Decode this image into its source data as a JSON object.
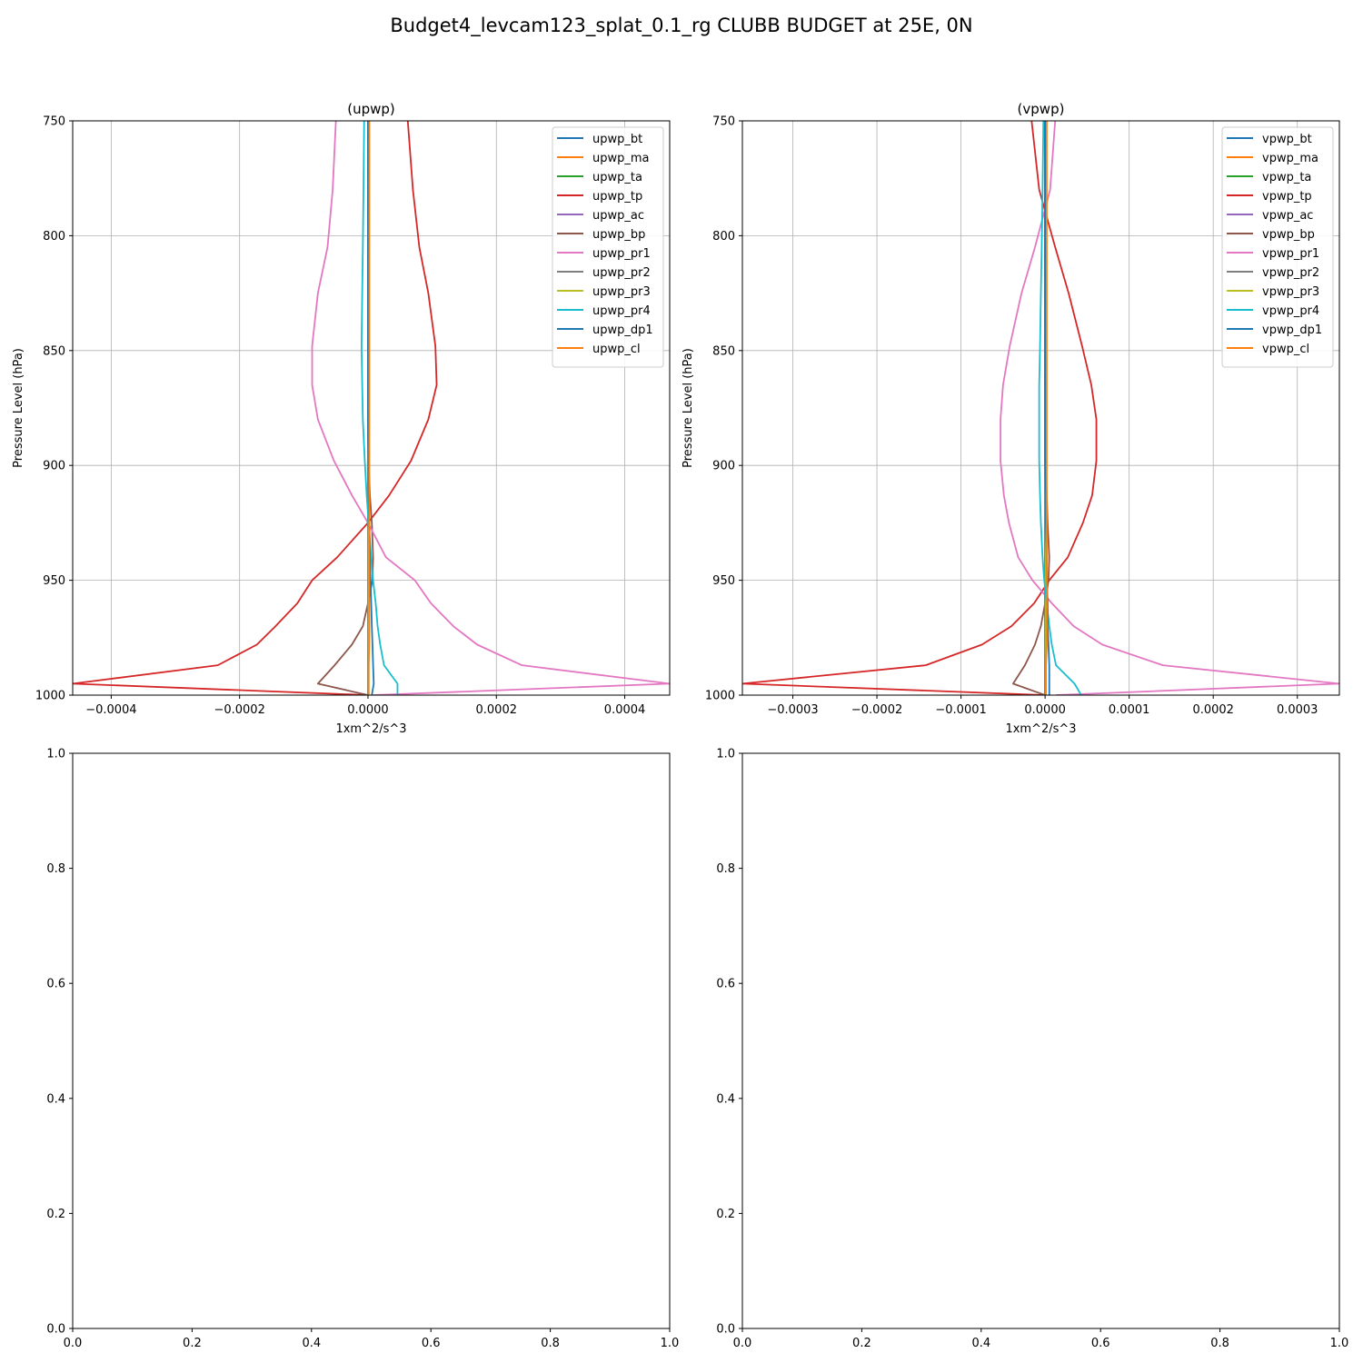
{
  "figure_title": "Budget4_levcam123_splat_0.1_rg CLUBB BUDGET at 25E, 0N",
  "colors": {
    "bt": "#1f77b4",
    "ma": "#ff7f0e",
    "ta": "#2ca02c",
    "tp": "#d62728",
    "ac": "#9467bd",
    "bp": "#8c564b",
    "pr1": "#e377c2",
    "pr2": "#7f7f7f",
    "pr3": "#bcbd22",
    "pr4": "#17becf",
    "dp1": "#1f77b4",
    "cl": "#ff7f0e"
  },
  "chart_data": [
    {
      "type": "line",
      "title": "(upwp)",
      "xlabel": "1xm^2/s^3",
      "ylabel": "Pressure Level (hPa)",
      "xlim": [
        -0.00046,
        0.00047
      ],
      "ylim": [
        1000,
        750
      ],
      "xticks": [
        -0.0004,
        -0.0002,
        0.0,
        0.0002,
        0.0004
      ],
      "xtick_labels": [
        "−0.0004",
        "−0.0002",
        "0.0000",
        "0.0002",
        "0.0004"
      ],
      "yticks": [
        750,
        800,
        850,
        900,
        950,
        1000
      ],
      "ytick_labels": [
        "750",
        "800",
        "850",
        "900",
        "950",
        "1000"
      ],
      "grid": true,
      "legend_position": "top-right",
      "levels": [
        750,
        780,
        805,
        825,
        848,
        865,
        880,
        898,
        913,
        925,
        940,
        950,
        960,
        970,
        978,
        987,
        995,
        1000
      ],
      "series": [
        {
          "name": "upwp_bt",
          "key": "bt",
          "values": [
            1e-06,
            1e-06,
            1e-06,
            1e-06,
            1e-06,
            1e-06,
            1e-06,
            1e-06,
            1e-06,
            1e-06,
            1e-06,
            1e-06,
            1e-06,
            1e-06,
            1e-06,
            1e-06,
            1e-06,
            1e-06
          ]
        },
        {
          "name": "upwp_ma",
          "key": "ma",
          "values": [
            0.0,
            0.0,
            0.0,
            0.0,
            0.0,
            0.0,
            0.0,
            0.0,
            0.0,
            0.0,
            0.0,
            0.0,
            0.0,
            0.0,
            0.0,
            0.0,
            0.0,
            0.0
          ]
        },
        {
          "name": "upwp_ta",
          "key": "ta",
          "values": [
            0.0,
            0.0,
            0.0,
            0.0,
            0.0,
            0.0,
            0.0,
            0.0,
            0.0,
            0.0,
            0.0,
            0.0,
            0.0,
            0.0,
            0.0,
            0.0,
            0.0,
            0.0
          ]
        },
        {
          "name": "upwp_tp",
          "key": "tp",
          "values": [
            6.2e-05,
            7e-05,
            8e-05,
            9.4e-05,
            0.000105,
            0.000107,
            9.4e-05,
            6.7e-05,
            3.3e-05,
            0.0,
            -4.8e-05,
            -8.7e-05,
            -0.00011,
            -0.000144,
            -0.000173,
            -0.000234,
            -0.00046,
            0.0
          ]
        },
        {
          "name": "upwp_ac",
          "key": "ac",
          "values": [
            0.0,
            0.0,
            0.0,
            0.0,
            0.0,
            0.0,
            0.0,
            0.0,
            0.0,
            0.0,
            0.0,
            0.0,
            0.0,
            0.0,
            0.0,
            0.0,
            0.0,
            0.0
          ]
        },
        {
          "name": "upwp_bp",
          "key": "bp",
          "values": [
            0.0,
            0.0,
            0.0,
            0.0,
            0.0,
            0.0,
            0.0,
            1e-06,
            3e-06,
            6e-06,
            8e-06,
            7e-06,
            0.0,
            -8e-06,
            -2.5e-05,
            -5.2e-05,
            -7.8e-05,
            0.0
          ]
        },
        {
          "name": "upwp_pr1",
          "key": "pr1",
          "values": [
            -5e-05,
            -5.5e-05,
            -6.3e-05,
            -7.8e-05,
            -8.7e-05,
            -8.7e-05,
            -7.8e-05,
            -5.3e-05,
            -2.5e-05,
            0.0,
            2.8e-05,
            7.3e-05,
            9.8e-05,
            0.000133,
            0.00017,
            0.00024,
            0.00047,
            8e-06
          ]
        },
        {
          "name": "upwp_pr2",
          "key": "pr2",
          "values": [
            0.0,
            0.0,
            0.0,
            0.0,
            0.0,
            0.0,
            0.0,
            0.0,
            0.0,
            0.0,
            0.0,
            0.0,
            0.0,
            0.0,
            0.0,
            0.0,
            0.0,
            0.0
          ]
        },
        {
          "name": "upwp_pr3",
          "key": "pr3",
          "values": [
            1e-06,
            1e-06,
            1e-06,
            1e-06,
            1e-06,
            1e-06,
            1e-06,
            1e-06,
            1e-06,
            1e-06,
            1e-06,
            1e-06,
            1e-06,
            1e-06,
            1e-06,
            1e-06,
            1e-06,
            1e-06
          ]
        },
        {
          "name": "upwp_pr4",
          "key": "pr4",
          "values": [
            -6e-06,
            -7e-06,
            -8e-06,
            -9e-06,
            -1e-05,
            -9e-06,
            -8e-06,
            -5e-06,
            -2e-06,
            1e-06,
            5e-06,
            8e-06,
            1.2e-05,
            1.5e-05,
            1.9e-05,
            2.5e-05,
            4.6e-05,
            4.6e-05
          ]
        },
        {
          "name": "upwp_dp1",
          "key": "dp1",
          "values": [
            0.0,
            0.0,
            0.0,
            0.0,
            0.0,
            0.0,
            0.0,
            1e-06,
            1e-06,
            2e-06,
            3e-06,
            4e-06,
            5e-06,
            6e-06,
            7e-06,
            8e-06,
            9e-06,
            6e-06
          ]
        },
        {
          "name": "upwp_cl",
          "key": "cl",
          "values": [
            2e-06,
            2e-06,
            2e-06,
            2e-06,
            2e-06,
            2e-06,
            2e-06,
            2e-06,
            2e-06,
            2e-06,
            2e-06,
            2e-06,
            2e-06,
            2e-06,
            2e-06,
            1e-06,
            1e-06,
            1e-06
          ]
        }
      ]
    },
    {
      "type": "line",
      "title": "(vpwp)",
      "xlabel": "1xm^2/s^3",
      "ylabel": "Pressure Level (hPa)",
      "xlim": [
        -0.00036,
        0.00035
      ],
      "ylim": [
        1000,
        750
      ],
      "xticks": [
        -0.0003,
        -0.0002,
        -0.0001,
        0.0,
        0.0001,
        0.0002,
        0.0003
      ],
      "xtick_labels": [
        "−0.0003",
        "−0.0002",
        "−0.0001",
        "0.0000",
        "0.0001",
        "0.0002",
        "0.0003"
      ],
      "yticks": [
        750,
        800,
        850,
        900,
        950,
        1000
      ],
      "ytick_labels": [
        "750",
        "800",
        "850",
        "900",
        "950",
        "1000"
      ],
      "grid": true,
      "legend_position": "top-right",
      "levels": [
        750,
        780,
        805,
        825,
        848,
        865,
        880,
        898,
        913,
        925,
        940,
        950,
        960,
        970,
        978,
        987,
        995,
        1000
      ],
      "series": [
        {
          "name": "vpwp_bt",
          "key": "bt",
          "values": [
            1e-06,
            1e-06,
            1e-06,
            1e-06,
            1e-06,
            1e-06,
            1e-06,
            1e-06,
            1e-06,
            1e-06,
            1e-06,
            1e-06,
            1e-06,
            1e-06,
            1e-06,
            1e-06,
            1e-06,
            1e-06
          ]
        },
        {
          "name": "vpwp_ma",
          "key": "ma",
          "values": [
            0.0,
            0.0,
            0.0,
            0.0,
            0.0,
            0.0,
            0.0,
            0.0,
            0.0,
            0.0,
            0.0,
            0.0,
            0.0,
            0.0,
            0.0,
            0.0,
            0.0,
            0.0
          ]
        },
        {
          "name": "vpwp_ta",
          "key": "ta",
          "values": [
            0.0,
            0.0,
            0.0,
            0.0,
            0.0,
            0.0,
            0.0,
            0.0,
            0.0,
            0.0,
            0.0,
            0.0,
            0.0,
            0.0,
            0.0,
            0.0,
            0.0,
            0.0
          ]
        },
        {
          "name": "vpwp_tp",
          "key": "tp",
          "values": [
            -1.6e-05,
            -7e-06,
            1.2e-05,
            2.8e-05,
            4.4e-05,
            5.5e-05,
            6.1e-05,
            6.1e-05,
            5.6e-05,
            4.5e-05,
            2.7e-05,
            5e-06,
            -1.3e-05,
            -4e-05,
            -7.5e-05,
            -0.000142,
            -0.00036,
            0.0
          ]
        },
        {
          "name": "vpwp_ac",
          "key": "ac",
          "values": [
            0.0,
            0.0,
            0.0,
            0.0,
            0.0,
            0.0,
            0.0,
            0.0,
            0.0,
            0.0,
            0.0,
            0.0,
            0.0,
            0.0,
            0.0,
            0.0,
            0.0,
            0.0
          ]
        },
        {
          "name": "vpwp_bp",
          "key": "bp",
          "values": [
            0.0,
            0.0,
            0.0,
            0.0,
            0.0,
            0.0,
            0.0,
            1e-06,
            2e-06,
            3e-06,
            5e-06,
            4e-06,
            0.0,
            -5e-06,
            -1.2e-05,
            -2.4e-05,
            -3.8e-05,
            0.0
          ]
        },
        {
          "name": "vpwp_pr1",
          "key": "pr1",
          "values": [
            1.2e-05,
            6e-06,
            -1.2e-05,
            -2.8e-05,
            -4.2e-05,
            -5e-05,
            -5.3e-05,
            -5.3e-05,
            -4.9e-05,
            -4.3e-05,
            -3.2e-05,
            -1.5e-05,
            8e-06,
            3.4e-05,
            6.8e-05,
            0.00014,
            0.00035,
            1.3e-05
          ]
        },
        {
          "name": "vpwp_pr2",
          "key": "pr2",
          "values": [
            0.0,
            0.0,
            0.0,
            0.0,
            0.0,
            0.0,
            0.0,
            0.0,
            0.0,
            0.0,
            0.0,
            0.0,
            0.0,
            0.0,
            0.0,
            0.0,
            0.0,
            0.0
          ]
        },
        {
          "name": "vpwp_pr3",
          "key": "pr3",
          "values": [
            1e-06,
            1e-06,
            1e-06,
            1e-06,
            1e-06,
            1e-06,
            1e-06,
            1e-06,
            1e-06,
            1e-06,
            1e-06,
            1e-06,
            1e-06,
            1e-06,
            1e-06,
            1e-06,
            1e-06,
            1e-06
          ]
        },
        {
          "name": "vpwp_pr4",
          "key": "pr4",
          "values": [
            -2e-06,
            -3e-06,
            -4e-06,
            -5e-06,
            -6e-06,
            -7e-06,
            -7e-06,
            -7e-06,
            -6e-06,
            -5e-06,
            -3e-06,
            -1e-06,
            2e-06,
            5e-06,
            8e-06,
            1.3e-05,
            3.5e-05,
            4.3e-05
          ]
        },
        {
          "name": "vpwp_dp1",
          "key": "dp1",
          "values": [
            0.0,
            0.0,
            0.0,
            0.0,
            0.0,
            0.0,
            0.0,
            0.0,
            1e-06,
            1e-06,
            2e-06,
            2e-06,
            3e-06,
            3e-06,
            4e-06,
            5e-06,
            5e-06,
            5e-06
          ]
        },
        {
          "name": "vpwp_cl",
          "key": "cl",
          "values": [
            2e-06,
            2e-06,
            2e-06,
            2e-06,
            2e-06,
            2e-06,
            2e-06,
            2e-06,
            2e-06,
            2e-06,
            2e-06,
            2e-06,
            2e-06,
            2e-06,
            2e-06,
            1e-06,
            1e-06,
            1e-06
          ]
        }
      ]
    },
    {
      "type": "line",
      "title": "",
      "xlim": [
        0,
        1
      ],
      "ylim": [
        0,
        1
      ],
      "xticks": [
        0,
        0.2,
        0.4,
        0.6,
        0.8,
        1.0
      ],
      "xtick_labels": [
        "0.0",
        "0.2",
        "0.4",
        "0.6",
        "0.8",
        "1.0"
      ],
      "yticks": [
        0,
        0.2,
        0.4,
        0.6,
        0.8,
        1.0
      ],
      "ytick_labels": [
        "0.0",
        "0.2",
        "0.4",
        "0.6",
        "0.8",
        "1.0"
      ],
      "grid": false,
      "series": []
    },
    {
      "type": "line",
      "title": "",
      "xlim": [
        0,
        1
      ],
      "ylim": [
        0,
        1
      ],
      "xticks": [
        0,
        0.2,
        0.4,
        0.6,
        0.8,
        1.0
      ],
      "xtick_labels": [
        "0.0",
        "0.2",
        "0.4",
        "0.6",
        "0.8",
        "1.0"
      ],
      "yticks": [
        0,
        0.2,
        0.4,
        0.6,
        0.8,
        1.0
      ],
      "ytick_labels": [
        "0.0",
        "0.2",
        "0.4",
        "0.6",
        "0.8",
        "1.0"
      ],
      "grid": false,
      "series": []
    }
  ]
}
